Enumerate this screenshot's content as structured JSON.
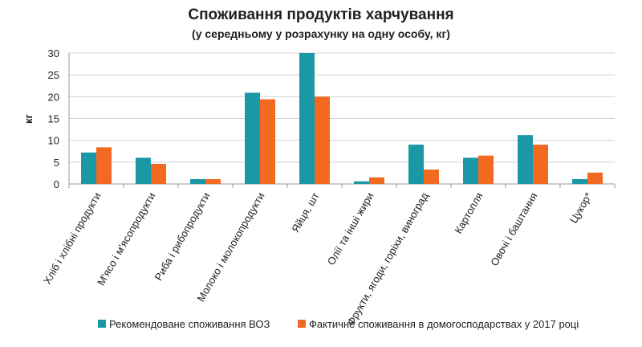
{
  "chart_data": {
    "type": "bar",
    "title": "Споживання продуктів харчування",
    "subtitle": "(у середньому у розрахунку на одну особу, кг)",
    "ylabel": "кг",
    "xlabel": "",
    "ylim": [
      0,
      30
    ],
    "yticks": [
      0,
      5,
      10,
      15,
      20,
      25,
      30
    ],
    "grid": true,
    "legend_position": "bottom-right",
    "categories": [
      "Хліб і хлібні продукти",
      "М'ясо і м'ясопродукти",
      "Риба і рибопродукти",
      "Молоко і молокопродукти",
      "Яйця, шт",
      "Олії та інші жири",
      "Фрукти, ягоди, горіхи, виноград",
      "Картопля",
      "Овочі і баштання",
      "Цукор*"
    ],
    "series": [
      {
        "name": "Рекомендоване споживання ВОЗ",
        "color": "#1a98a6",
        "values": [
          7.2,
          6.0,
          1.1,
          20.9,
          30.0,
          0.6,
          9.0,
          6.0,
          11.2,
          1.1
        ]
      },
      {
        "name": "Фактичне споживання в домогосподарствах у 2017 році",
        "color": "#f26a22",
        "values": [
          8.4,
          4.6,
          1.1,
          19.4,
          20.0,
          1.5,
          3.3,
          6.5,
          9.0,
          2.6
        ]
      }
    ]
  }
}
